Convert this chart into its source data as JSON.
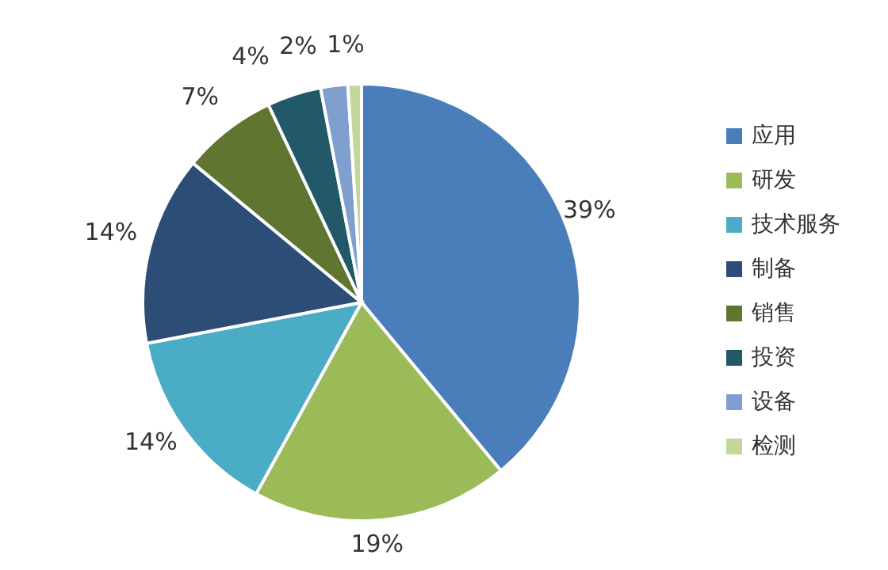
{
  "chart_data": {
    "type": "pie",
    "categories": [
      "应用",
      "研发",
      "技术服务",
      "制备",
      "销售",
      "投资",
      "设备",
      "检测"
    ],
    "values": [
      39,
      19,
      14,
      14,
      7,
      4,
      2,
      1
    ],
    "value_labels": [
      "39%",
      "19%",
      "14%",
      "14%",
      "7%",
      "4%",
      "2%",
      "1%"
    ],
    "colors": [
      "#4a7ebb",
      "#9bbb59",
      "#4bacc6",
      "#2c4d75",
      "#5f7530",
      "#215968",
      "#7f9fcf",
      "#c3d69b"
    ],
    "legend": "right"
  }
}
